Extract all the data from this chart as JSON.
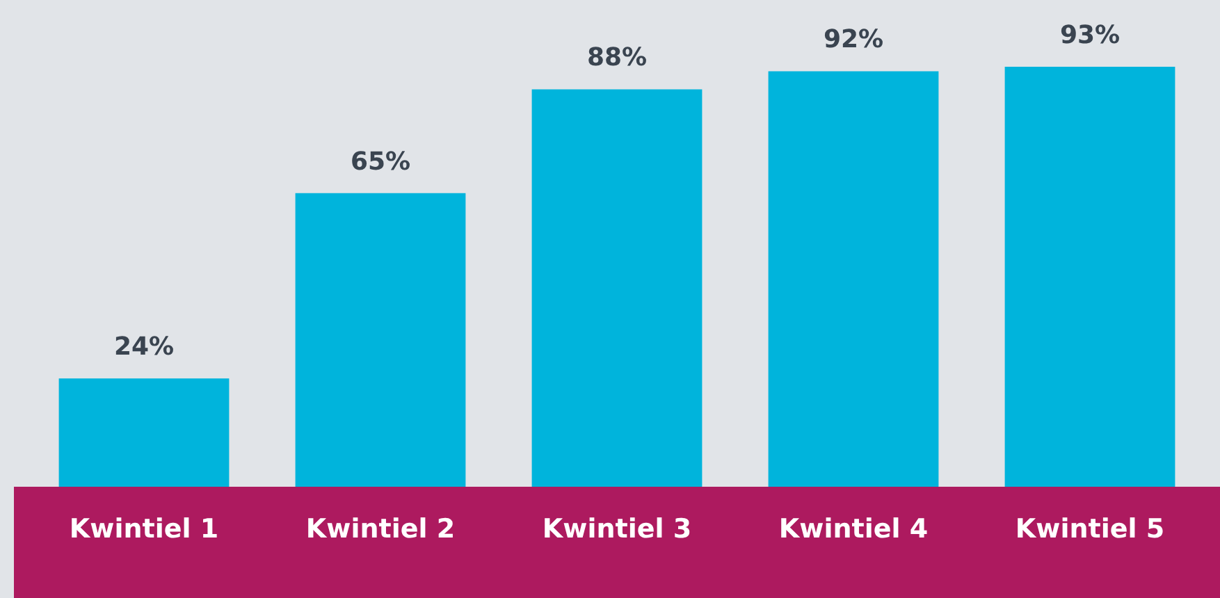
{
  "chart_data": {
    "type": "bar",
    "categories": [
      "Kwintiel 1",
      "Kwintiel 2",
      "Kwintiel 3",
      "Kwintiel 4",
      "Kwintiel 5"
    ],
    "values": [
      24,
      65,
      88,
      92,
      93
    ],
    "value_labels": [
      "24%",
      "65%",
      "88%",
      "92%",
      "93%"
    ],
    "color": "#00b4dc",
    "grid": false
  }
}
